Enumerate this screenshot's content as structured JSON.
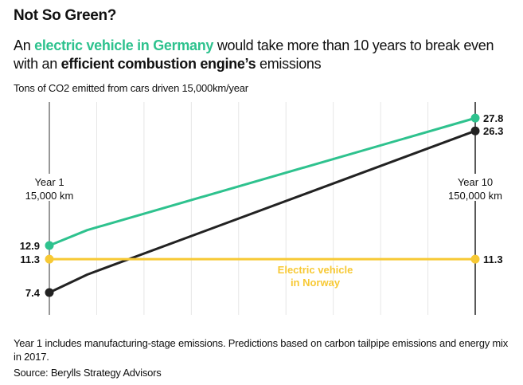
{
  "header": {
    "title": "Not So Green?",
    "subtitle_parts": [
      "An ",
      "electric vehicle in Germany",
      " would take more than 10 years to break even with an ",
      "efficient combustion engine’s",
      " emissions"
    ]
  },
  "footer": {
    "note": "Year 1 includes manufacturing-stage emissions. Predictions based on carbon tailpipe emissions and energy mix in 2017.",
    "source": "Source: Berylls Strategy Advisors"
  },
  "chart_data": {
    "type": "line",
    "title": "Not So Green?",
    "ylabel": "Tons of CO2 emitted from cars driven 15,000km/year",
    "xlabel": "",
    "xlim": [
      1,
      10
    ],
    "grid": "vertical, one per year",
    "x_labels": [
      {
        "x": 1,
        "lines": [
          "Year 1",
          "15,000 km"
        ]
      },
      {
        "x": 10,
        "lines": [
          "Year 10",
          "150,000 km"
        ]
      }
    ],
    "series": [
      {
        "key": "ev_germany",
        "color": "#2ec28e",
        "points": [
          [
            1,
            12.9
          ],
          [
            1.8,
            14.7
          ],
          [
            10,
            27.8
          ]
        ],
        "end_labels": [
          "12.9",
          "27.8"
        ]
      },
      {
        "key": "combustion",
        "color": "#222222",
        "points": [
          [
            1,
            7.4
          ],
          [
            1.8,
            9.5
          ],
          [
            10,
            26.3
          ]
        ],
        "end_labels": [
          "7.4",
          "26.3"
        ]
      },
      {
        "key": "ev_norway",
        "name": "Electric vehicle in Norway",
        "name_lines": [
          "Electric vehicle",
          "in Norway"
        ],
        "color": "#f7c935",
        "points": [
          [
            1,
            11.3
          ],
          [
            10,
            11.3
          ]
        ],
        "end_labels": [
          "11.3",
          "11.3"
        ]
      }
    ]
  }
}
